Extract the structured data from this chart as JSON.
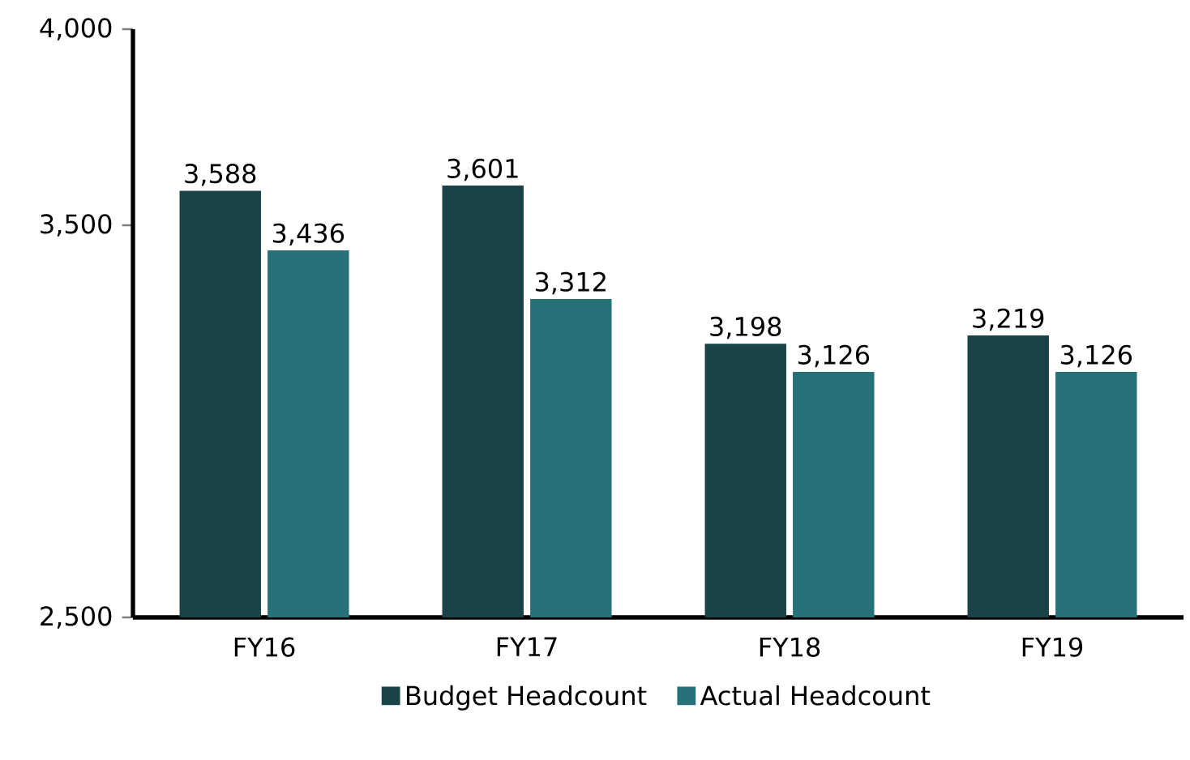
{
  "chart_data": {
    "type": "bar",
    "categories": [
      "FY16",
      "FY17",
      "FY18",
      "FY19"
    ],
    "series": [
      {
        "name": "Budget Headcount",
        "color": "#1a4347",
        "values": [
          3588,
          3601,
          3198,
          3219
        ],
        "value_labels": [
          "3,588",
          "3,601",
          "3,198",
          "3,219"
        ]
      },
      {
        "name": "Actual Headcount",
        "color": "#277279",
        "values": [
          3436,
          3312,
          3126,
          3126
        ],
        "value_labels": [
          "3,436",
          "3,312",
          "3,126",
          "3,126"
        ]
      }
    ],
    "ylim": [
      2500,
      4000
    ],
    "yticks": [
      {
        "value": 2500,
        "label": "2,500"
      },
      {
        "value": 3500,
        "label": "3,500"
      },
      {
        "value": 4000,
        "label": "4,000"
      }
    ],
    "grid": false,
    "legend": "bottom"
  }
}
